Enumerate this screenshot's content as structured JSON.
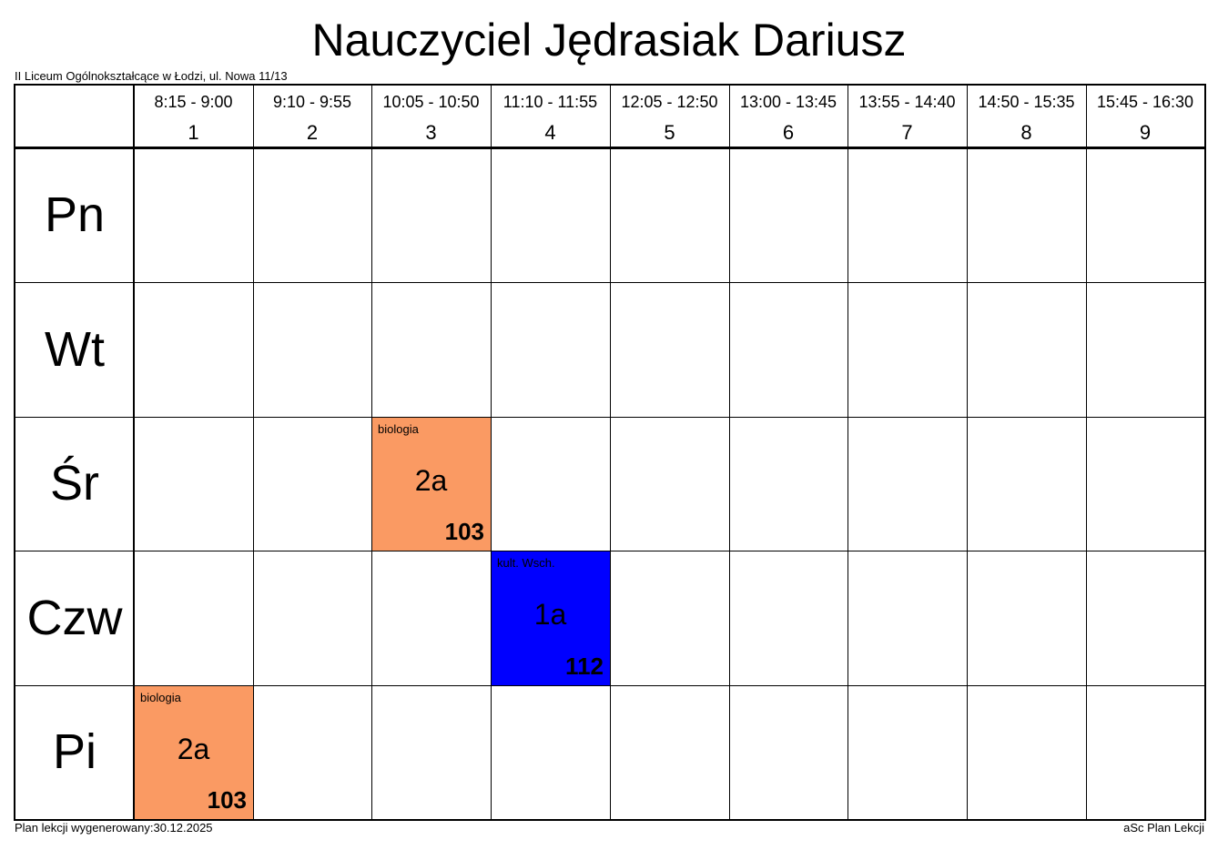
{
  "title": "Nauczyciel Jędrasiak Dariusz",
  "school": "II Liceum Ogólnokształcące w Łodzi, ul. Nowa 11/13",
  "footer": {
    "generated": "Plan lekcji wygenerowany:30.12.2025",
    "software": "aSc Plan Lekcji"
  },
  "periods": [
    {
      "time": "8:15 - 9:00",
      "num": "1"
    },
    {
      "time": "9:10 - 9:55",
      "num": "2"
    },
    {
      "time": "10:05 - 10:50",
      "num": "3"
    },
    {
      "time": "11:10 - 11:55",
      "num": "4"
    },
    {
      "time": "12:05 - 12:50",
      "num": "5"
    },
    {
      "time": "13:00 - 13:45",
      "num": "6"
    },
    {
      "time": "13:55 - 14:40",
      "num": "7"
    },
    {
      "time": "14:50 - 15:35",
      "num": "8"
    },
    {
      "time": "15:45 - 16:30",
      "num": "9"
    }
  ],
  "days": [
    "Pn",
    "Wt",
    "Śr",
    "Czw",
    "Pi"
  ],
  "lessons": [
    {
      "day": 2,
      "period": 2,
      "subject": "biologia",
      "class": "2a",
      "room": "103",
      "color": "#fa9a63"
    },
    {
      "day": 3,
      "period": 3,
      "subject": "kult. Wsch.",
      "class": "1a",
      "room": "112",
      "color": "#0000ff"
    },
    {
      "day": 4,
      "period": 0,
      "subject": "biologia",
      "class": "2a",
      "room": "103",
      "color": "#fa9a63"
    }
  ]
}
